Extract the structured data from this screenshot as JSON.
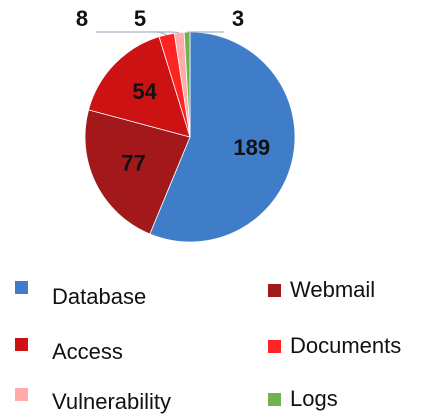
{
  "chart_data": {
    "type": "pie",
    "categories": [
      "Database",
      "Webmail",
      "Access",
      "Documents",
      "Vulnerability",
      "Logs"
    ],
    "values": [
      189,
      77,
      54,
      8,
      5,
      3
    ],
    "colors": [
      "#3f7dc9",
      "#a3191b",
      "#cc1212",
      "#ff2424",
      "#ffabab",
      "#6fb24f"
    ],
    "legend": "bottom"
  }
}
